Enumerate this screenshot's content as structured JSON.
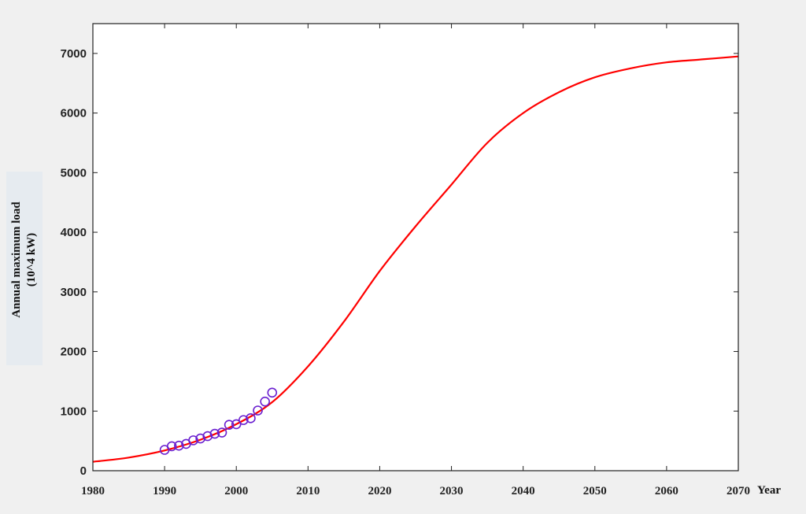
{
  "chart_data": {
    "type": "line",
    "title": "",
    "xlabel": "Year",
    "ylabel": [
      "Annual maximum load",
      "(10^4 kW)"
    ],
    "xlim": [
      1980,
      2070
    ],
    "ylim": [
      0,
      7500
    ],
    "x_ticks": [
      1980,
      1990,
      2000,
      2010,
      2020,
      2030,
      2040,
      2050,
      2060,
      2070
    ],
    "y_ticks": [
      0,
      1000,
      2000,
      3000,
      4000,
      5000,
      6000,
      7000
    ],
    "grid": false,
    "legend": "none",
    "series": [
      {
        "kind": "line",
        "color": "#ff0000",
        "x": [
          1980,
          1985,
          1990,
          1995,
          2000,
          2005,
          2010,
          2015,
          2020,
          2025,
          2030,
          2035,
          2040,
          2045,
          2050,
          2055,
          2060,
          2065,
          2070
        ],
        "y": [
          150,
          220,
          340,
          520,
          780,
          1150,
          1750,
          2500,
          3350,
          4100,
          4800,
          5500,
          6000,
          6350,
          6600,
          6750,
          6850,
          6900,
          6950
        ]
      },
      {
        "kind": "scatter",
        "marker": "circle-open",
        "color": "#6a1fd0",
        "x": [
          1990,
          1991,
          1992,
          1993,
          1994,
          1995,
          1996,
          1997,
          1998,
          1999,
          2000,
          2001,
          2002,
          2003,
          2004,
          2005
        ],
        "y": [
          350,
          410,
          420,
          450,
          510,
          540,
          580,
          620,
          640,
          770,
          780,
          850,
          880,
          1010,
          1160,
          1310
        ]
      }
    ]
  }
}
